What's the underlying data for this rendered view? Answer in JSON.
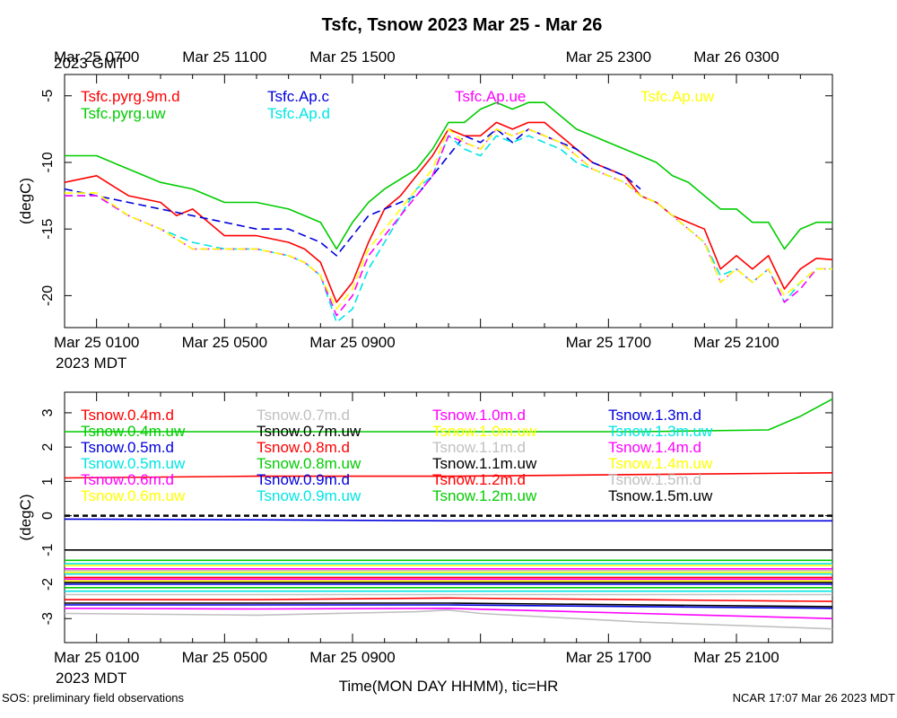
{
  "figure": {
    "title": "Tsfc, Tsnow 2023 Mar 25 - Mar 26",
    "xlabel": "Time(MON DAY HHMM), tic=HR",
    "footer_left": "SOS: preliminary field observations",
    "footer_right": "NCAR 17:07 Mar 26 2023 MDT"
  },
  "chart_data": [
    {
      "type": "line",
      "title": "Tsfc, Tsnow 2023 Mar 25 - Mar 26",
      "ylabel": "(degC)",
      "xlim": [
        0,
        24
      ],
      "ylim": [
        -22.4,
        -3.4
      ],
      "x_units": "hours after Mar 25 00:00 MDT",
      "yticks": [
        -5,
        -10,
        -15,
        -20
      ],
      "ytick_labels": [
        "-5",
        "-10",
        "-15",
        "-20"
      ],
      "top_axis_label": "2023 GMT",
      "top_ticks": [
        {
          "x": 1,
          "label": "Mar 25 0700"
        },
        {
          "x": 5,
          "label": "Mar 25 1100"
        },
        {
          "x": 9,
          "label": "Mar 25 1500"
        },
        {
          "x": 17,
          "label": "Mar 25 2300"
        },
        {
          "x": 21,
          "label": "Mar 26 0300"
        }
      ],
      "bottom_axis_label": "2023 MDT",
      "bottom_ticks": [
        {
          "x": 1,
          "label": "Mar 25 0100"
        },
        {
          "x": 5,
          "label": "Mar 25 0500"
        },
        {
          "x": 9,
          "label": "Mar 25 0900"
        },
        {
          "x": 17,
          "label": "Mar 25 1700"
        },
        {
          "x": 21,
          "label": "Mar 25 2100"
        }
      ],
      "series": [
        {
          "name": "Tsfc.pyrg.9m.d",
          "color": "#ff0000",
          "dash": false,
          "x": [
            0,
            1,
            2,
            3,
            3.5,
            4,
            5,
            6,
            7,
            7.5,
            8,
            8.5,
            9,
            9.5,
            10,
            10.5,
            11,
            11.5,
            12,
            12.5,
            13,
            13.5,
            14,
            14.5,
            15,
            15.5,
            16,
            16.5,
            17,
            17.5,
            18,
            18.5,
            19,
            19.5,
            20,
            20.5,
            21,
            21.5,
            22,
            22.5,
            23,
            23.5,
            24
          ],
          "y": [
            -11.5,
            -11,
            -12.5,
            -13,
            -14,
            -13.5,
            -15.5,
            -15.5,
            -16,
            -16.5,
            -17.5,
            -20.5,
            -19,
            -16,
            -13.5,
            -12.5,
            -11,
            -9.5,
            -7.5,
            -8,
            -8,
            -7,
            -7.5,
            -7,
            -7,
            -8,
            -9,
            -10,
            -10.5,
            -11,
            -12.5,
            -13,
            -14,
            -14.5,
            -15,
            -18,
            -17,
            -18,
            -17,
            -19.5,
            -18,
            -17.2,
            -17.3
          ]
        },
        {
          "name": "Tsfc.pyrg.uw",
          "color": "#00cc00",
          "dash": false,
          "x": [
            0,
            1,
            2,
            3,
            4,
            5,
            6,
            7,
            7.5,
            8,
            8.5,
            9,
            9.5,
            10,
            11,
            11.5,
            12,
            12.5,
            13,
            13.5,
            14,
            14.5,
            15,
            15.5,
            16,
            16.5,
            17,
            17.5,
            18,
            18.5,
            19,
            19.5,
            20,
            20.5,
            21,
            21.5,
            22,
            22.5,
            23,
            23.5,
            24
          ],
          "y": [
            -9.5,
            -9.5,
            -10.5,
            -11.5,
            -12,
            -13,
            -13,
            -13.5,
            -14,
            -14.5,
            -16.5,
            -14.5,
            -13,
            -12,
            -10.5,
            -9,
            -7,
            -7,
            -6,
            -5.5,
            -6,
            -5.5,
            -5.5,
            -6.5,
            -7.5,
            -8,
            -8.5,
            -9,
            -9.5,
            -10,
            -11,
            -11.5,
            -12.5,
            -13.5,
            -13.5,
            -14.5,
            -14.5,
            -16.5,
            -15,
            -14.5,
            -14.5
          ]
        },
        {
          "name": "Tsfc.Ap.c",
          "color": "#0000dd",
          "dash": true,
          "x": [
            0,
            1,
            2,
            3,
            4,
            5,
            6,
            7,
            7.5,
            8,
            8.5,
            9,
            9.5,
            10,
            10.5,
            11,
            11.5,
            12,
            12.5,
            13,
            13.5,
            14,
            14.5,
            15,
            15.5,
            16,
            16.5,
            17,
            17.5,
            18
          ],
          "y": [
            -12,
            -12.5,
            -13,
            -13.5,
            -14,
            -14.5,
            -15,
            -15,
            -15.5,
            -16,
            -17,
            -15.5,
            -14,
            -13.5,
            -13,
            -12.5,
            -11,
            -9.5,
            -8,
            -8.5,
            -7.5,
            -8.5,
            -7.5,
            -8,
            -8.5,
            -9,
            -10,
            -10.5,
            -11,
            -12
          ]
        },
        {
          "name": "Tsfc.Ap.d",
          "color": "#00e5e5",
          "dash": true,
          "x": [
            0,
            1,
            2,
            3,
            4,
            5,
            6,
            7,
            7.5,
            8,
            8.5,
            9,
            9.5,
            10,
            10.5,
            11,
            11.5,
            12,
            12.5,
            13,
            13.5,
            14,
            14.5,
            15,
            15.5,
            16,
            16.5,
            17,
            17.5,
            18,
            18.5,
            19,
            19.5,
            20,
            20.5,
            21,
            21.5,
            22,
            22.5,
            23,
            23.5,
            24
          ],
          "y": [
            -12.5,
            -12.5,
            -14,
            -15,
            -16,
            -16.5,
            -16.5,
            -17,
            -17.5,
            -18.5,
            -22,
            -21,
            -18,
            -16,
            -14,
            -12,
            -11,
            -8,
            -9,
            -9.5,
            -8,
            -8.5,
            -8,
            -8.5,
            -9,
            -10,
            -10.5,
            -11,
            -11.5,
            -12.5,
            -13,
            -14,
            -15,
            -16,
            -18.5,
            -18,
            -19,
            -18,
            -20.5,
            -19,
            -18,
            -18
          ]
        },
        {
          "name": "Tsfc.Ap.ue",
          "color": "#ff00ff",
          "dash": true,
          "x": [
            0,
            1,
            2,
            3,
            4,
            5,
            6,
            7,
            7.5,
            8,
            8.5,
            9,
            9.5,
            10,
            10.5,
            11,
            11.5,
            12,
            12.5,
            13,
            13.5,
            14,
            14.5,
            15,
            15.5,
            16,
            16.5,
            17,
            17.5,
            18,
            18.5,
            19,
            19.5,
            20,
            20.5,
            21,
            21.5,
            22,
            22.5,
            23,
            23.5,
            24
          ],
          "y": [
            -12.5,
            -12.5,
            -14,
            -15,
            -16.5,
            -16.5,
            -16.5,
            -17,
            -17.5,
            -18.5,
            -21.5,
            -20,
            -17,
            -15.5,
            -14,
            -12.5,
            -11,
            -8,
            -8.5,
            -9,
            -7.5,
            -8,
            -7.5,
            -8,
            -8.5,
            -9.5,
            -10.5,
            -11,
            -11.5,
            -12.5,
            -13,
            -14,
            -15,
            -16,
            -19,
            -18,
            -19,
            -18,
            -20.5,
            -19.5,
            -18,
            -18
          ]
        },
        {
          "name": "Tsfc.Ap.uw",
          "color": "#ffff00",
          "dash": true,
          "x": [
            0,
            1,
            2,
            3,
            4,
            5,
            6,
            7,
            7.5,
            8,
            8.5,
            9,
            9.5,
            10,
            10.5,
            11,
            11.5,
            12,
            12.5,
            13,
            13.5,
            14,
            14.5,
            15,
            15.5,
            16,
            16.5,
            17,
            17.5,
            18,
            18.5,
            19,
            19.5,
            20,
            20.5,
            21,
            21.5,
            22,
            22.5,
            23,
            23.5,
            24
          ],
          "y": [
            -12.3,
            -12.3,
            -14,
            -15,
            -16.5,
            -16.5,
            -16.5,
            -17,
            -17.5,
            -18.5,
            -21,
            -19.5,
            -16.5,
            -15,
            -13.5,
            -12,
            -10.5,
            -7.5,
            -8.5,
            -9,
            -7.5,
            -8,
            -7.5,
            -8,
            -8.5,
            -9.5,
            -10.5,
            -11,
            -11.5,
            -12.5,
            -13,
            -14,
            -15,
            -16,
            -19,
            -18,
            -19,
            -18,
            -20,
            -19,
            -18,
            -18
          ]
        }
      ]
    },
    {
      "type": "line",
      "ylabel": "(degC)",
      "xlim": [
        0,
        24
      ],
      "ylim": [
        -3.7,
        3.6
      ],
      "x_units": "hours after Mar 25 00:00 MDT",
      "yticks": [
        3,
        2,
        1,
        0,
        -1,
        -2,
        -3
      ],
      "ytick_labels": [
        "3",
        "2",
        "1",
        "0",
        "-1",
        "-2",
        "-3"
      ],
      "zero_line": true,
      "bottom_axis_label": "2023 MDT",
      "bottom_ticks": [
        {
          "x": 1,
          "label": "Mar 25 0100"
        },
        {
          "x": 5,
          "label": "Mar 25 0500"
        },
        {
          "x": 9,
          "label": "Mar 25 0900"
        },
        {
          "x": 17,
          "label": "Mar 25 1700"
        },
        {
          "x": 21,
          "label": "Mar 25 2100"
        }
      ],
      "series": [
        {
          "name": "Tsnow.0.4m.d",
          "color": "#ff0000",
          "x": [
            0,
            6,
            12,
            18,
            24
          ],
          "y": [
            1.1,
            1.15,
            1.15,
            1.2,
            1.25
          ]
        },
        {
          "name": "Tsnow.0.4m.uw",
          "color": "#00cc00",
          "x": [
            0,
            6,
            12,
            18,
            22,
            23,
            24
          ],
          "y": [
            2.45,
            2.45,
            2.45,
            2.45,
            2.5,
            2.9,
            3.4
          ]
        },
        {
          "name": "Tsnow.0.5m.d",
          "color": "#0000dd",
          "x": [
            0,
            6,
            12,
            18,
            24
          ],
          "y": [
            -0.1,
            -0.12,
            -0.15,
            -0.15,
            -0.15
          ]
        },
        {
          "name": "Tsnow.0.5m.uw",
          "color": "#00e5e5",
          "x": [
            0,
            12,
            24
          ],
          "y": [
            -1.4,
            -1.4,
            -1.4
          ]
        },
        {
          "name": "Tsnow.0.6m.d",
          "color": "#ff00ff",
          "x": [
            0,
            12,
            24
          ],
          "y": [
            -1.55,
            -1.55,
            -1.55
          ]
        },
        {
          "name": "Tsnow.0.6m.uw",
          "color": "#ffff00",
          "x": [
            0,
            12,
            24
          ],
          "y": [
            -1.65,
            -1.65,
            -1.65
          ]
        },
        {
          "name": "Tsnow.0.7m.d",
          "color": "#c0c0c0",
          "x": [
            0,
            6,
            11,
            12,
            13,
            18,
            24
          ],
          "y": [
            -2.85,
            -2.9,
            -2.8,
            -2.75,
            -2.85,
            -3.1,
            -3.3
          ]
        },
        {
          "name": "Tsnow.0.7m.uw",
          "color": "#000000",
          "x": [
            0,
            12,
            24
          ],
          "y": [
            -1.0,
            -1.0,
            -1.0
          ]
        },
        {
          "name": "Tsnow.0.8m.d",
          "color": "#ff0000",
          "x": [
            0,
            12,
            24
          ],
          "y": [
            -1.8,
            -1.8,
            -1.8
          ]
        },
        {
          "name": "Tsnow.0.8m.uw",
          "color": "#00cc00",
          "x": [
            0,
            12,
            24
          ],
          "y": [
            -1.3,
            -1.3,
            -1.3
          ]
        },
        {
          "name": "Tsnow.0.9m.d",
          "color": "#0000dd",
          "x": [
            0,
            12,
            24
          ],
          "y": [
            -2.0,
            -2.0,
            -2.0
          ]
        },
        {
          "name": "Tsnow.0.9m.uw",
          "color": "#00e5e5",
          "x": [
            0,
            12,
            24
          ],
          "y": [
            -2.2,
            -2.2,
            -2.2
          ]
        },
        {
          "name": "Tsnow.1.0m.d",
          "color": "#ff00ff",
          "x": [
            0,
            6,
            12,
            18,
            24
          ],
          "y": [
            -2.7,
            -2.72,
            -2.7,
            -2.85,
            -3.0
          ]
        },
        {
          "name": "Tsnow.1.0m.uw",
          "color": "#ffff00",
          "x": [
            0,
            12,
            24
          ],
          "y": [
            -1.9,
            -1.9,
            -1.9
          ]
        },
        {
          "name": "Tsnow.1.1m.d",
          "color": "#c0c0c0",
          "x": [
            0,
            12,
            24
          ],
          "y": [
            -2.3,
            -2.3,
            -2.3
          ]
        },
        {
          "name": "Tsnow.1.1m.uw",
          "color": "#000000",
          "x": [
            0,
            12,
            24
          ],
          "y": [
            -2.55,
            -2.55,
            -2.65
          ]
        },
        {
          "name": "Tsnow.1.2m.d",
          "color": "#ff0000",
          "x": [
            0,
            6,
            12,
            18,
            24
          ],
          "y": [
            -2.45,
            -2.45,
            -2.4,
            -2.45,
            -2.5
          ]
        },
        {
          "name": "Tsnow.1.2m.uw",
          "color": "#00cc00",
          "x": [
            0,
            12,
            24
          ],
          "y": [
            -2.1,
            -2.1,
            -2.1
          ]
        },
        {
          "name": "Tsnow.1.3m.d",
          "color": "#0000dd",
          "x": [
            0,
            12,
            24
          ],
          "y": [
            -2.6,
            -2.6,
            -2.7
          ]
        },
        {
          "name": "Tsnow.1.3m.uw",
          "color": "#00e5e5",
          "x": [
            0,
            12,
            24
          ],
          "y": [
            -1.7,
            -1.7,
            -1.7
          ]
        },
        {
          "name": "Tsnow.1.4m.d",
          "color": "#ff00ff",
          "x": [
            0,
            12,
            24
          ],
          "y": [
            -1.85,
            -1.85,
            -1.85
          ]
        },
        {
          "name": "Tsnow.1.4m.uw",
          "color": "#ffff00",
          "x": [
            0,
            12,
            24
          ],
          "y": [
            -1.45,
            -1.45,
            -1.45
          ]
        },
        {
          "name": "Tsnow.1.5m.d",
          "color": "#c0c0c0",
          "x": [
            0,
            12,
            24
          ],
          "y": [
            -1.6,
            -1.6,
            -1.6
          ]
        },
        {
          "name": "Tsnow.1.5m.uw",
          "color": "#000000",
          "x": [
            0,
            12,
            24
          ],
          "y": [
            -1.95,
            -1.95,
            -1.95
          ]
        }
      ]
    }
  ]
}
